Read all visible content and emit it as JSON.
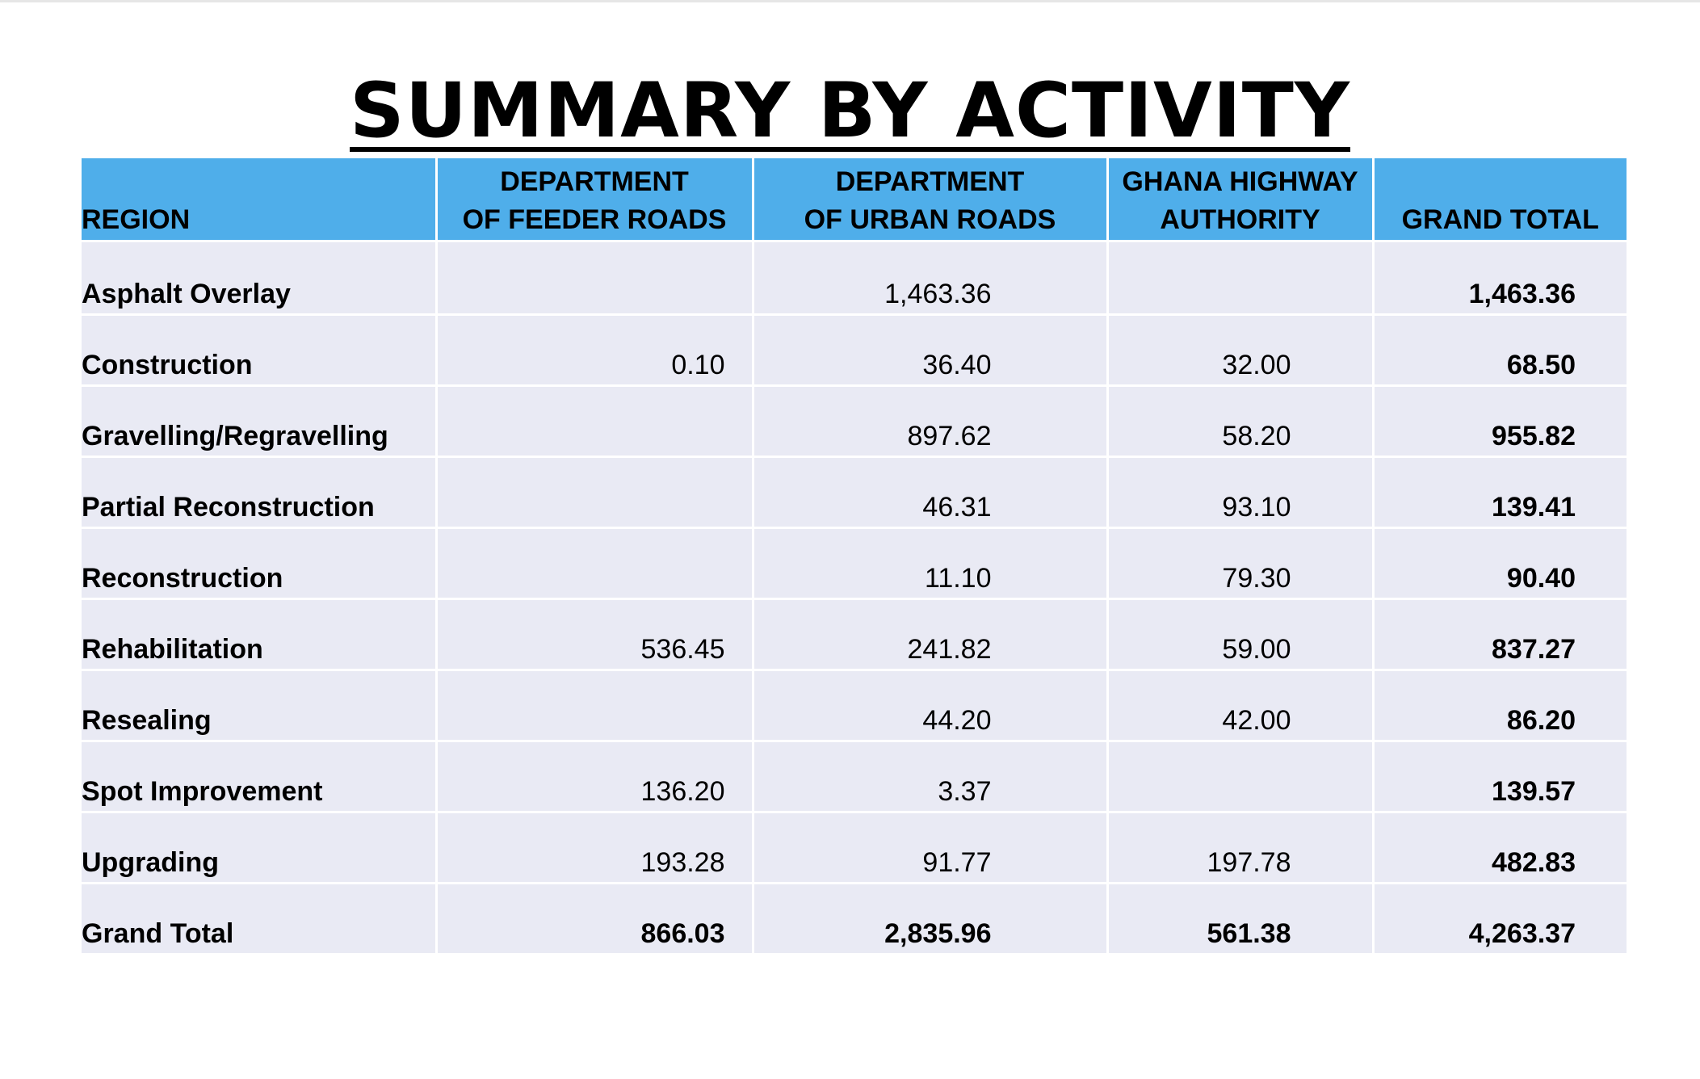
{
  "title": "SUMMARY BY ACTIVITY",
  "table": {
    "headers": [
      [
        "REGION"
      ],
      [
        "DEPARTMENT",
        "OF FEEDER ROADS"
      ],
      [
        "DEPARTMENT",
        "OF URBAN ROADS"
      ],
      [
        "GHANA HIGHWAY",
        "AUTHORITY"
      ],
      [
        "GRAND TOTAL"
      ]
    ],
    "rows": [
      [
        "Asphalt Overlay",
        "",
        "1,463.36",
        "",
        "1,463.36"
      ],
      [
        "Construction",
        "0.10",
        "36.40",
        "32.00",
        "68.50"
      ],
      [
        "Gravelling/Regravelling",
        "",
        "897.62",
        "58.20",
        "955.82"
      ],
      [
        "Partial Reconstruction",
        "",
        "46.31",
        "93.10",
        "139.41"
      ],
      [
        "Reconstruction",
        "",
        "11.10",
        "79.30",
        "90.40"
      ],
      [
        "Rehabilitation",
        "536.45",
        "241.82",
        "59.00",
        "837.27"
      ],
      [
        "Resealing",
        "",
        "44.20",
        "42.00",
        "86.20"
      ],
      [
        "Spot Improvement",
        "136.20",
        "3.37",
        "",
        "139.57"
      ],
      [
        "Upgrading",
        "193.28",
        "91.77",
        "197.78",
        "482.83"
      ],
      [
        "Grand Total",
        "866.03",
        "2,835.96",
        "561.38",
        "4,263.37"
      ]
    ]
  },
  "colors": {
    "header_bg": "#4faeea",
    "row_bg": "#e9eaf4",
    "grid_line": "#ffffff"
  }
}
